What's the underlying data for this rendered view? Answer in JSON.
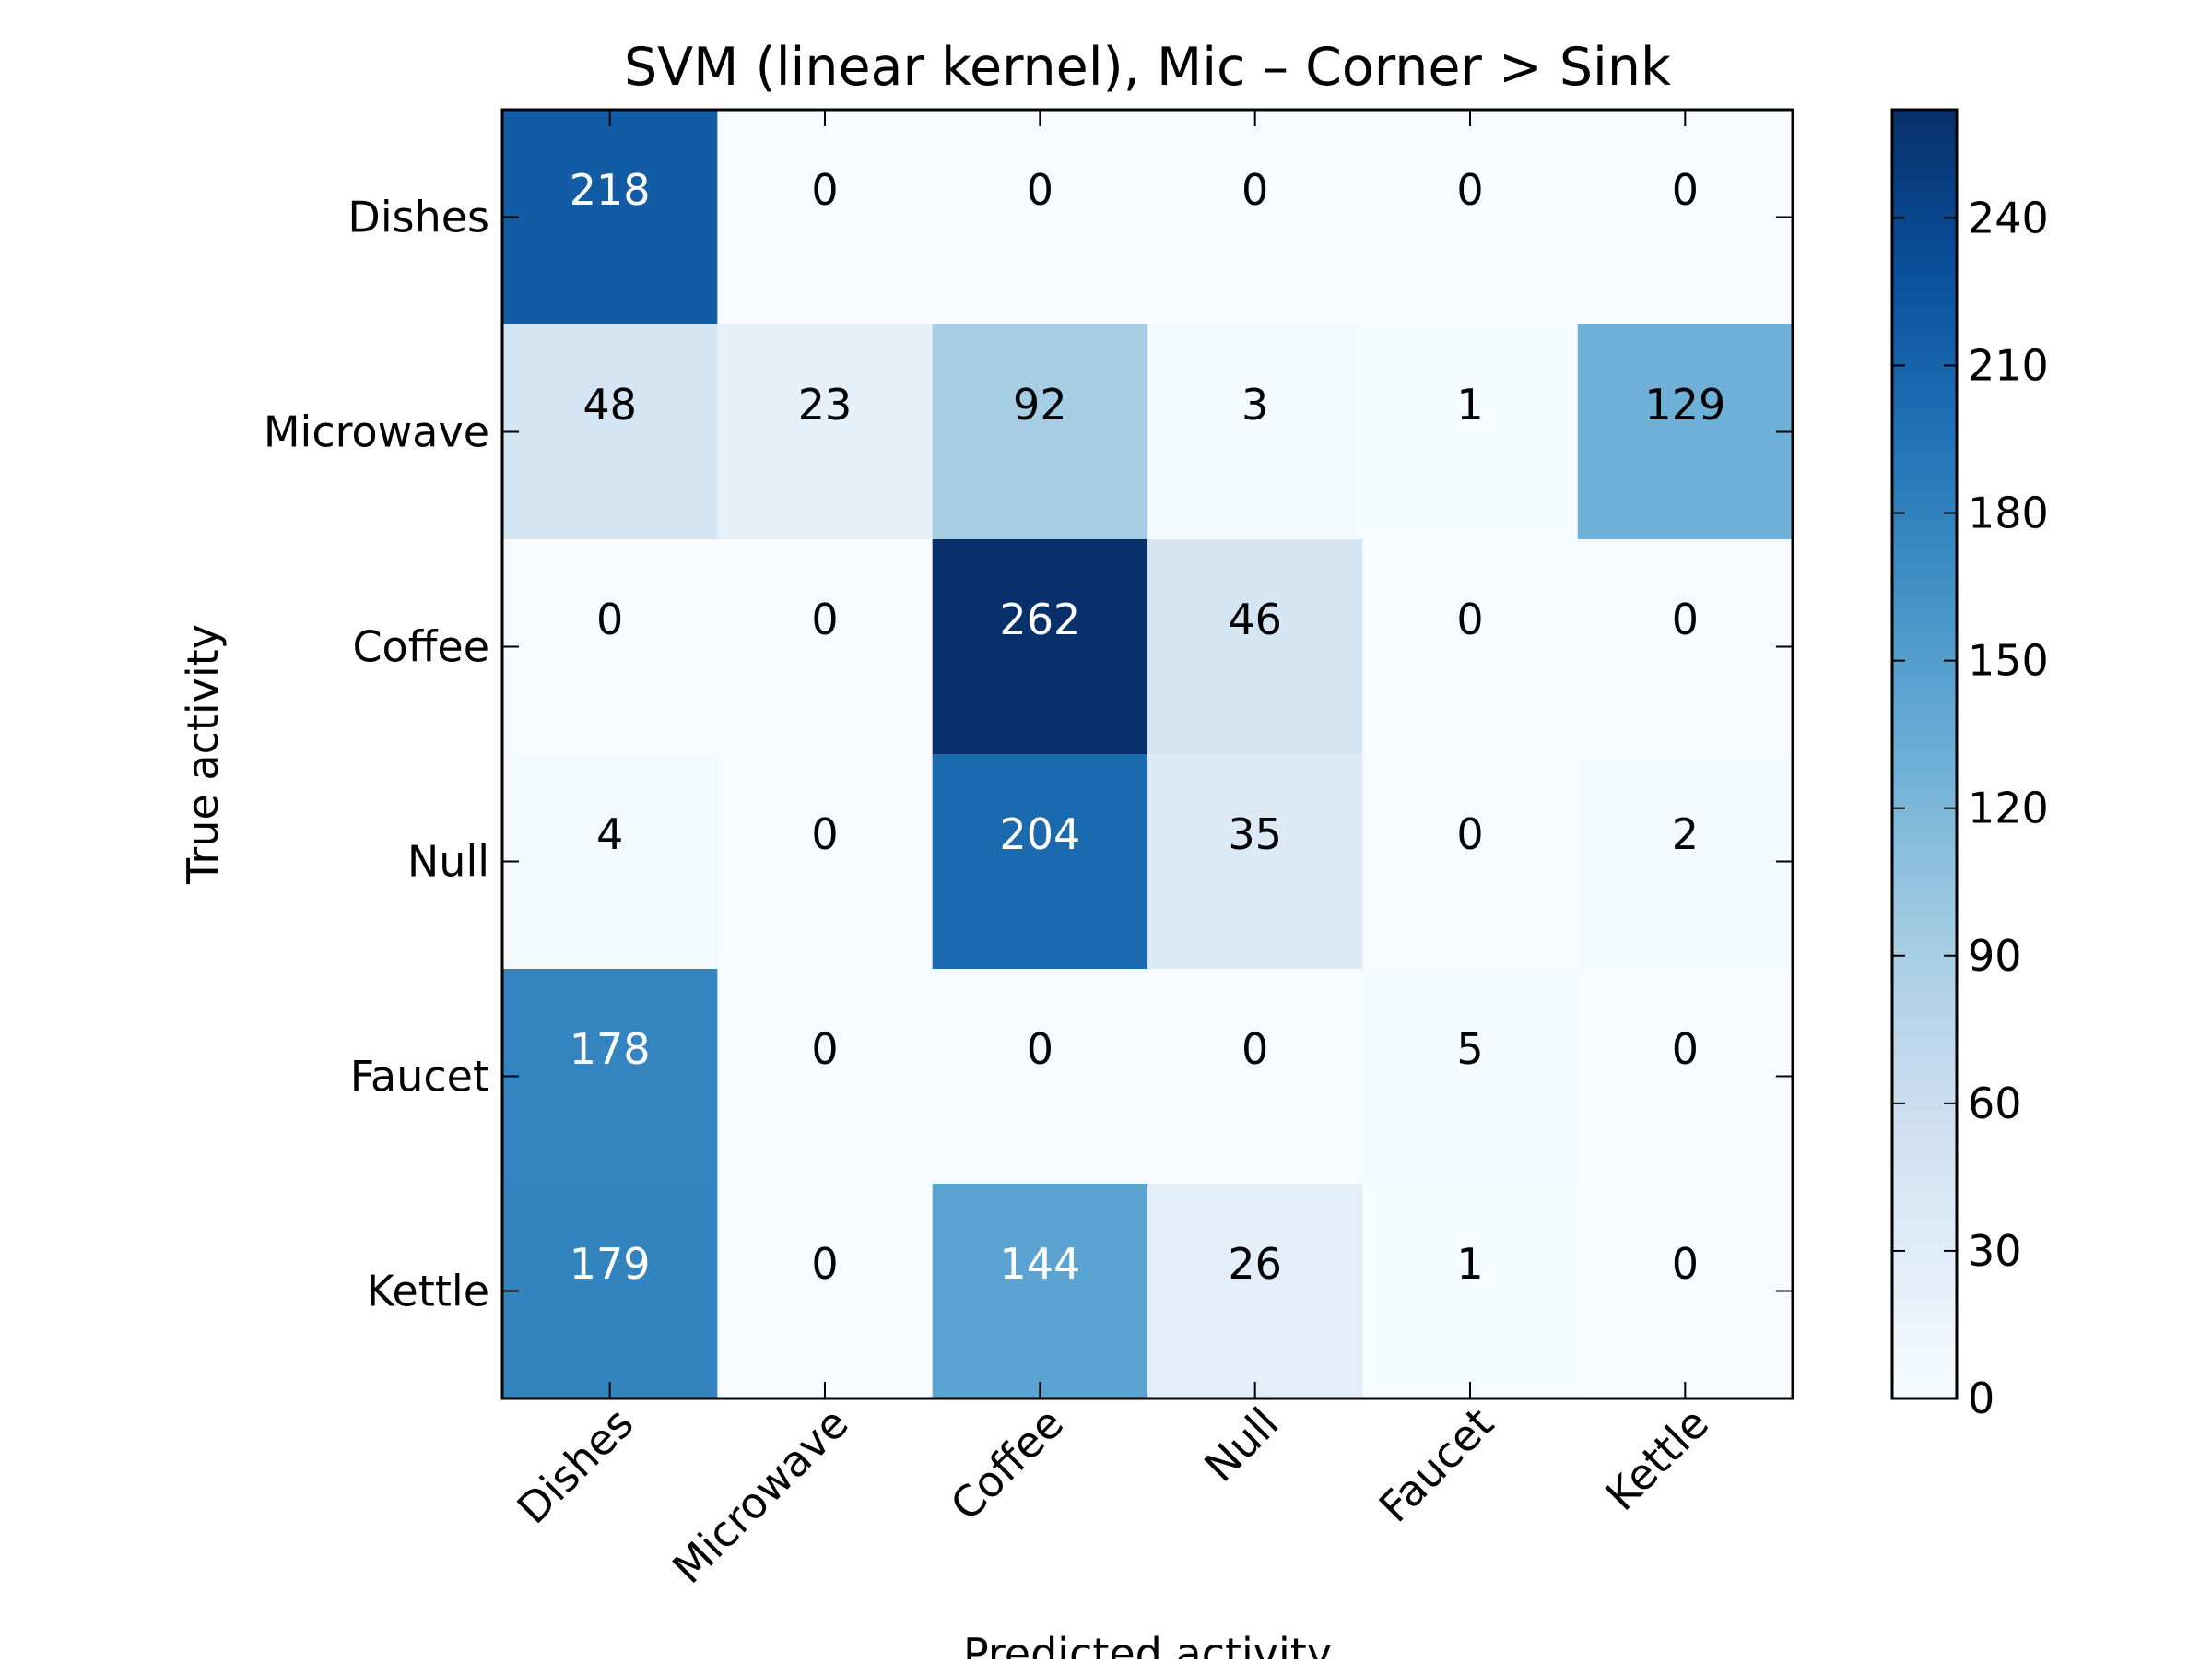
{
  "chart_data": {
    "type": "heatmap",
    "title": "SVM (linear kernel), Mic – Corner > Sink",
    "xlabel": "Predicted activity",
    "ylabel": "True activity",
    "x_categories": [
      "Dishes",
      "Microwave",
      "Coffee",
      "Null",
      "Faucet",
      "Kettle"
    ],
    "y_categories": [
      "Dishes",
      "Microwave",
      "Coffee",
      "Null",
      "Faucet",
      "Kettle"
    ],
    "values": [
      [
        218,
        0,
        0,
        0,
        0,
        0
      ],
      [
        48,
        23,
        92,
        3,
        1,
        129
      ],
      [
        0,
        0,
        262,
        46,
        0,
        0
      ],
      [
        4,
        0,
        204,
        35,
        0,
        2
      ],
      [
        178,
        0,
        0,
        0,
        5,
        0
      ],
      [
        179,
        0,
        144,
        26,
        1,
        0
      ]
    ],
    "colormap": "Blues",
    "colorbar": {
      "range": [
        0,
        262
      ],
      "ticks": [
        0,
        30,
        60,
        90,
        120,
        150,
        180,
        210,
        240
      ]
    },
    "label_colors": {
      "dark_cell_text": "#ffffff",
      "light_cell_text": "#000000"
    }
  }
}
